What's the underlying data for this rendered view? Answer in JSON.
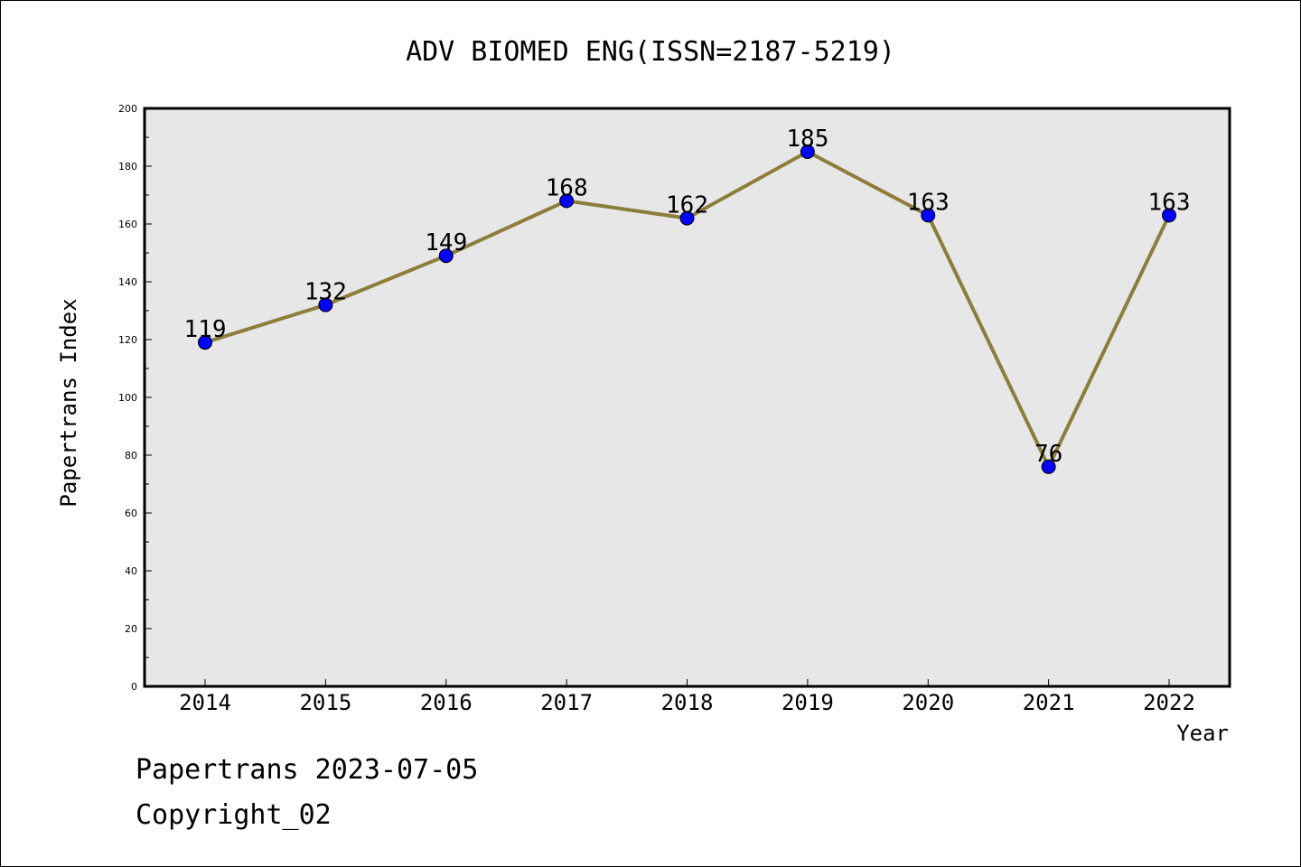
{
  "chart_data": {
    "type": "line",
    "title": "ADV BIOMED ENG(ISSN=2187-5219)",
    "xlabel": "Year",
    "ylabel": "Papertrans Index",
    "categories": [
      "2014",
      "2015",
      "2016",
      "2017",
      "2018",
      "2019",
      "2020",
      "2021",
      "2022"
    ],
    "values": [
      119,
      132,
      149,
      168,
      162,
      185,
      163,
      76,
      163
    ],
    "data_labels": [
      "119",
      "132",
      "149",
      "168",
      "162",
      "185",
      "163",
      "76",
      "163"
    ],
    "ylim": [
      0,
      200
    ],
    "yticks": [
      0,
      20,
      40,
      60,
      80,
      100,
      120,
      140,
      160,
      180,
      200
    ],
    "grid": false,
    "legend": "none",
    "colors": {
      "line": "#8b7d3a",
      "marker": "#0000ff",
      "plot_background": "#e7e7e7"
    }
  },
  "footer": {
    "line1": "Papertrans 2023-07-05",
    "line2": "Copyright_02"
  }
}
